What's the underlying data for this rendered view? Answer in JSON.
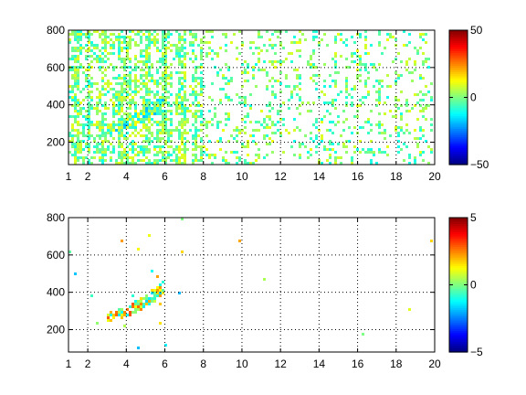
{
  "chart_data": [
    {
      "type": "heatmap",
      "title": "",
      "xlabel": "",
      "ylabel": "",
      "xlim": [
        1,
        20
      ],
      "ylim": [
        80,
        800
      ],
      "x_ticks": [
        "1",
        "2",
        "4",
        "6",
        "8",
        "10",
        "12",
        "14",
        "16",
        "18",
        "20"
      ],
      "x_tick_values": [
        1,
        2,
        4,
        6,
        8,
        10,
        12,
        14,
        16,
        18,
        20
      ],
      "y_ticks": [
        "200",
        "400",
        "600",
        "800"
      ],
      "y_tick_values": [
        200,
        400,
        600,
        800
      ],
      "grid": true,
      "colormap": "jet",
      "colorbar": {
        "min": -50,
        "max": 50,
        "ticks": [
          "50",
          "0",
          "−50"
        ],
        "tick_values": [
          50,
          0,
          -50
        ]
      },
      "density": "dense",
      "features": [
        {
          "name": "curved band",
          "x_range": [
            3,
            6
          ],
          "y_range": [
            260,
            460
          ],
          "value_range": [
            -20,
            15
          ]
        }
      ]
    },
    {
      "type": "heatmap",
      "title": "",
      "xlabel": "",
      "ylabel": "",
      "xlim": [
        1,
        20
      ],
      "ylim": [
        80,
        800
      ],
      "x_ticks": [
        "1",
        "2",
        "4",
        "6",
        "8",
        "10",
        "12",
        "14",
        "16",
        "18",
        "20"
      ],
      "x_tick_values": [
        1,
        2,
        4,
        6,
        8,
        10,
        12,
        14,
        16,
        18,
        20
      ],
      "y_ticks": [
        "200",
        "400",
        "600",
        "800"
      ],
      "y_tick_values": [
        200,
        400,
        600,
        800
      ],
      "grid": true,
      "colormap": "jet",
      "colorbar": {
        "min": -5,
        "max": 5,
        "ticks": [
          "5",
          "0",
          "−5"
        ],
        "tick_values": [
          5,
          0,
          -5
        ]
      },
      "density": "sparse",
      "features": [
        {
          "name": "curved band",
          "x_range": [
            3,
            6
          ],
          "y_range": [
            260,
            460
          ],
          "value_range": [
            -2,
            3
          ]
        }
      ]
    }
  ]
}
